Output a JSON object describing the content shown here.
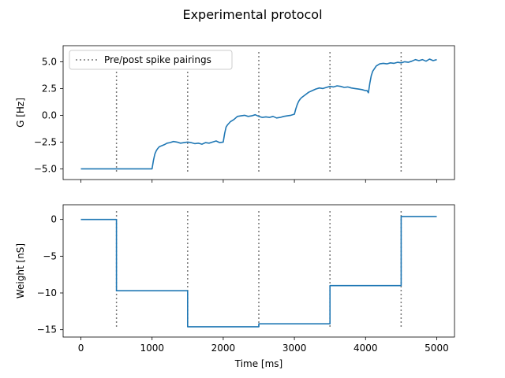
{
  "figure": {
    "title": "Experimental protocol"
  },
  "chart_data": [
    {
      "type": "line",
      "ylabel": "G [Hz]",
      "xlabel": "",
      "xlim": [
        -250,
        5250
      ],
      "ylim": [
        -6.0,
        6.5
      ],
      "yticks": [
        -5.0,
        -2.5,
        0.0,
        2.5,
        5.0
      ],
      "ytick_labels": [
        "−5.0",
        "−2.5",
        "0.0",
        "2.5",
        "5.0"
      ],
      "xticks": [
        0,
        1000,
        2000,
        3000,
        4000,
        5000
      ],
      "show_xtick_labels": false,
      "grid": false,
      "legend": {
        "placement": "top-left",
        "entries": [
          "Pre/post spike pairings"
        ]
      },
      "vlines": {
        "name": "Pre/post spike pairings",
        "x": [
          500,
          1500,
          2500,
          3500,
          4500
        ],
        "style": "dotted",
        "color": "#777777"
      },
      "series": [
        {
          "color": "#1f77b4",
          "x": [
            0,
            500,
            1000,
            1020,
            1040,
            1060,
            1080,
            1100,
            1130,
            1170,
            1210,
            1250,
            1300,
            1350,
            1400,
            1450,
            1500,
            1550,
            1600,
            1650,
            1700,
            1750,
            1800,
            1850,
            1900,
            1950,
            2000,
            2020,
            2040,
            2060,
            2080,
            2100,
            2150,
            2200,
            2250,
            2300,
            2350,
            2400,
            2450,
            2500,
            2550,
            2600,
            2650,
            2700,
            2750,
            2800,
            2850,
            2900,
            2950,
            3000,
            3020,
            3040,
            3060,
            3080,
            3100,
            3150,
            3200,
            3250,
            3300,
            3350,
            3400,
            3450,
            3500,
            3550,
            3600,
            3650,
            3700,
            3750,
            3800,
            3850,
            3900,
            3950,
            4000,
            4020,
            4040,
            4060,
            4080,
            4100,
            4150,
            4200,
            4250,
            4300,
            4350,
            4400,
            4450,
            4500,
            4550,
            4600,
            4650,
            4700,
            4750,
            4800,
            4850,
            4900,
            4950,
            5000
          ],
          "y": [
            -5.0,
            -5.0,
            -5.0,
            -4.2,
            -3.6,
            -3.3,
            -3.1,
            -2.95,
            -2.85,
            -2.75,
            -2.6,
            -2.55,
            -2.45,
            -2.5,
            -2.6,
            -2.55,
            -2.5,
            -2.55,
            -2.65,
            -2.6,
            -2.7,
            -2.55,
            -2.6,
            -2.5,
            -2.4,
            -2.55,
            -2.5,
            -1.7,
            -1.1,
            -0.9,
            -0.75,
            -0.6,
            -0.4,
            -0.1,
            -0.05,
            0.0,
            -0.1,
            -0.05,
            0.05,
            -0.1,
            -0.2,
            -0.15,
            -0.2,
            -0.1,
            -0.25,
            -0.2,
            -0.1,
            -0.05,
            0.0,
            0.1,
            0.6,
            1.0,
            1.3,
            1.5,
            1.65,
            1.9,
            2.15,
            2.3,
            2.45,
            2.55,
            2.5,
            2.6,
            2.7,
            2.65,
            2.75,
            2.7,
            2.6,
            2.65,
            2.55,
            2.5,
            2.45,
            2.4,
            2.3,
            2.3,
            2.1,
            3.0,
            3.7,
            4.1,
            4.6,
            4.8,
            4.85,
            4.8,
            4.9,
            4.85,
            4.95,
            4.9,
            5.0,
            4.95,
            5.05,
            5.2,
            5.1,
            5.2,
            5.05,
            5.25,
            5.1,
            5.2
          ]
        }
      ]
    },
    {
      "type": "line",
      "ylabel": "Weight [nS]",
      "xlabel": "Time [ms]",
      "xlim": [
        -250,
        5250
      ],
      "ylim": [
        -16.0,
        2.0
      ],
      "yticks": [
        0,
        -5,
        -10,
        -15
      ],
      "ytick_labels": [
        "0",
        "−5",
        "−10",
        "−15"
      ],
      "xticks": [
        0,
        1000,
        2000,
        3000,
        4000,
        5000
      ],
      "xtick_labels": [
        "0",
        "1000",
        "2000",
        "3000",
        "4000",
        "5000"
      ],
      "show_xtick_labels": true,
      "grid": false,
      "vlines": {
        "x": [
          500,
          1500,
          2500,
          3500,
          4500
        ],
        "style": "dotted",
        "color": "#777777"
      },
      "series": [
        {
          "color": "#1f77b4",
          "x": [
            0,
            500,
            500,
            1500,
            1500,
            2500,
            2500,
            3500,
            3500,
            4500,
            4500,
            5000
          ],
          "y": [
            0,
            0,
            -9.7,
            -9.7,
            -14.6,
            -14.6,
            -14.2,
            -14.2,
            -9.0,
            -9.0,
            0.4,
            0.4
          ]
        }
      ]
    }
  ]
}
